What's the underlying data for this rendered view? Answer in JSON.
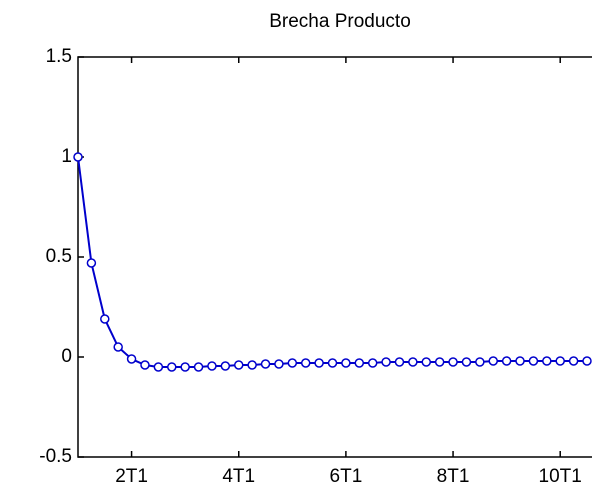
{
  "chart_data": {
    "type": "line",
    "title": "Brecha Producto",
    "x": [
      1,
      2,
      3,
      4,
      5,
      6,
      7,
      8,
      9,
      10,
      11,
      12,
      13,
      14,
      15,
      16,
      17,
      18,
      19,
      20,
      21,
      22,
      23,
      24,
      25,
      26,
      27,
      28,
      29,
      30,
      31,
      32,
      33,
      34,
      35,
      36,
      37,
      38,
      39
    ],
    "series": [
      {
        "name": "Brecha Producto",
        "color": "#0000cc",
        "values": [
          1.0,
          0.47,
          0.19,
          0.05,
          -0.01,
          -0.04,
          -0.05,
          -0.05,
          -0.05,
          -0.05,
          -0.045,
          -0.045,
          -0.04,
          -0.04,
          -0.035,
          -0.035,
          -0.03,
          -0.03,
          -0.03,
          -0.03,
          -0.03,
          -0.03,
          -0.03,
          -0.025,
          -0.025,
          -0.025,
          -0.025,
          -0.025,
          -0.025,
          -0.025,
          -0.025,
          -0.02,
          -0.02,
          -0.02,
          -0.02,
          -0.02,
          -0.02,
          -0.02,
          -0.02
        ]
      }
    ],
    "xlim": [
      1,
      39
    ],
    "xticks": [
      {
        "value": 5,
        "label": "2T1"
      },
      {
        "value": 13,
        "label": "4T1"
      },
      {
        "value": 21,
        "label": "6T1"
      },
      {
        "value": 29,
        "label": "8T1"
      },
      {
        "value": 37,
        "label": "10T1"
      }
    ],
    "ylim": [
      -0.5,
      1.5
    ],
    "yticks": [
      -0.5,
      0,
      0.5,
      1,
      1.5
    ],
    "grid": false
  }
}
